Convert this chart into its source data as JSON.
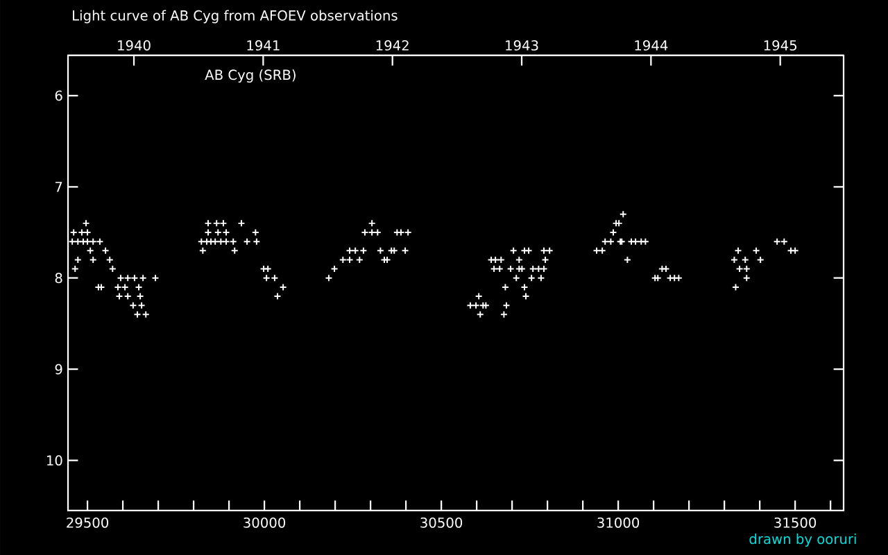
{
  "chart_data": {
    "type": "scatter",
    "title": "Light curve of AB Cyg from AFOEV observations",
    "annotations": [
      "AB Cyg (SRB)",
      "drawn by ooruri"
    ],
    "xlim": [
      29445,
      31637
    ],
    "ylim": [
      10.55,
      5.56
    ],
    "xticks": [
      29500,
      {
        "value": 29600,
        "label": null
      },
      {
        "value": 29700,
        "label": null
      },
      {
        "value": 29800,
        "label": null
      },
      {
        "value": 29900,
        "label": null
      },
      30000,
      {
        "value": 30100,
        "label": null
      },
      {
        "value": 30200,
        "label": null
      },
      {
        "value": 30300,
        "label": null
      },
      {
        "value": 30400,
        "label": null
      },
      30500,
      {
        "value": 30600,
        "label": null
      },
      {
        "value": 30700,
        "label": null
      },
      {
        "value": 30800,
        "label": null
      },
      {
        "value": 30900,
        "label": null
      },
      31000,
      {
        "value": 31100,
        "label": null
      },
      {
        "value": 31200,
        "label": null
      },
      {
        "value": 31300,
        "label": null
      },
      {
        "value": 31400,
        "label": null
      },
      31500,
      {
        "value": 31600,
        "label": null
      }
    ],
    "yticks": [
      6,
      7,
      8,
      9,
      10
    ],
    "x2lim": [
      1939.49,
      1945.49
    ],
    "x2ticks": [
      1940,
      1941,
      1942,
      1943,
      1944,
      1945
    ],
    "marker": "cross",
    "series": [
      {
        "color": "#ffffff",
        "x": [
          31014,
          29496,
          29841,
          29865,
          29884,
          29935,
          30304,
          30994,
          31002,
          29461,
          29484,
          29500,
          29841,
          29869,
          29892,
          29975,
          30284,
          30304,
          30320,
          30375,
          30386,
          30406,
          30986,
          29457,
          29473,
          29488,
          29500,
          29516,
          29535,
          29822,
          29837,
          29849,
          29861,
          29877,
          29892,
          29912,
          29951,
          29978,
          30963,
          30979,
          31006,
          31010,
          31037,
          31049,
          31065,
          31077,
          31449,
          31469,
          29508,
          29551,
          29826,
          29916,
          30241,
          30257,
          30280,
          30328,
          30359,
          30367,
          30398,
          30704,
          30735,
          30747,
          30790,
          30806,
          30939,
          30955,
          31339,
          31390,
          31488,
          31500,
          29473,
          29516,
          29563,
          30222,
          30241,
          30269,
          30339,
          30347,
          30641,
          30653,
          30669,
          30720,
          30794,
          31026,
          31328,
          31359,
          31402,
          29465,
          29571,
          29998,
          30010,
          30198,
          30649,
          30665,
          30696,
          30720,
          30728,
          30759,
          30775,
          30790,
          31124,
          31135,
          31343,
          31363,
          29594,
          29614,
          29633,
          29657,
          29692,
          30006,
          30029,
          30182,
          30712,
          30755,
          30782,
          31104,
          31112,
          31147,
          31159,
          31171,
          31363,
          29531,
          29539,
          29586,
          29606,
          29645,
          30053,
          30681,
          30735,
          31332,
          29590,
          29614,
          29649,
          30037,
          30606,
          30739,
          29629,
          29653,
          30582,
          30598,
          30618,
          30626,
          30684,
          29641,
          29665,
          30610,
          30677
        ],
        "values": [
          7.3,
          7.4,
          7.4,
          7.4,
          7.4,
          7.4,
          7.4,
          7.4,
          7.4,
          7.5,
          7.5,
          7.5,
          7.5,
          7.5,
          7.5,
          7.5,
          7.5,
          7.5,
          7.5,
          7.5,
          7.5,
          7.5,
          7.5,
          7.6,
          7.6,
          7.6,
          7.6,
          7.6,
          7.6,
          7.6,
          7.6,
          7.6,
          7.6,
          7.6,
          7.6,
          7.6,
          7.6,
          7.6,
          7.6,
          7.6,
          7.6,
          7.6,
          7.6,
          7.6,
          7.6,
          7.6,
          7.6,
          7.6,
          7.7,
          7.7,
          7.7,
          7.7,
          7.7,
          7.7,
          7.7,
          7.7,
          7.7,
          7.7,
          7.7,
          7.7,
          7.7,
          7.7,
          7.7,
          7.7,
          7.7,
          7.7,
          7.7,
          7.7,
          7.7,
          7.7,
          7.8,
          7.8,
          7.8,
          7.8,
          7.8,
          7.8,
          7.8,
          7.8,
          7.8,
          7.8,
          7.8,
          7.8,
          7.8,
          7.8,
          7.8,
          7.8,
          7.8,
          7.9,
          7.9,
          7.9,
          7.9,
          7.9,
          7.9,
          7.9,
          7.9,
          7.9,
          7.9,
          7.9,
          7.9,
          7.9,
          7.9,
          7.9,
          7.9,
          7.9,
          8.0,
          8.0,
          8.0,
          8.0,
          8.0,
          8.0,
          8.0,
          8.0,
          8.0,
          8.0,
          8.0,
          8.0,
          8.0,
          8.0,
          8.0,
          8.0,
          8.0,
          8.1,
          8.1,
          8.1,
          8.1,
          8.1,
          8.1,
          8.1,
          8.1,
          8.1,
          8.2,
          8.2,
          8.2,
          8.2,
          8.2,
          8.2,
          8.3,
          8.3,
          8.3,
          8.3,
          8.3,
          8.3,
          8.3,
          8.4,
          8.4,
          8.4,
          8.4
        ]
      }
    ]
  }
}
